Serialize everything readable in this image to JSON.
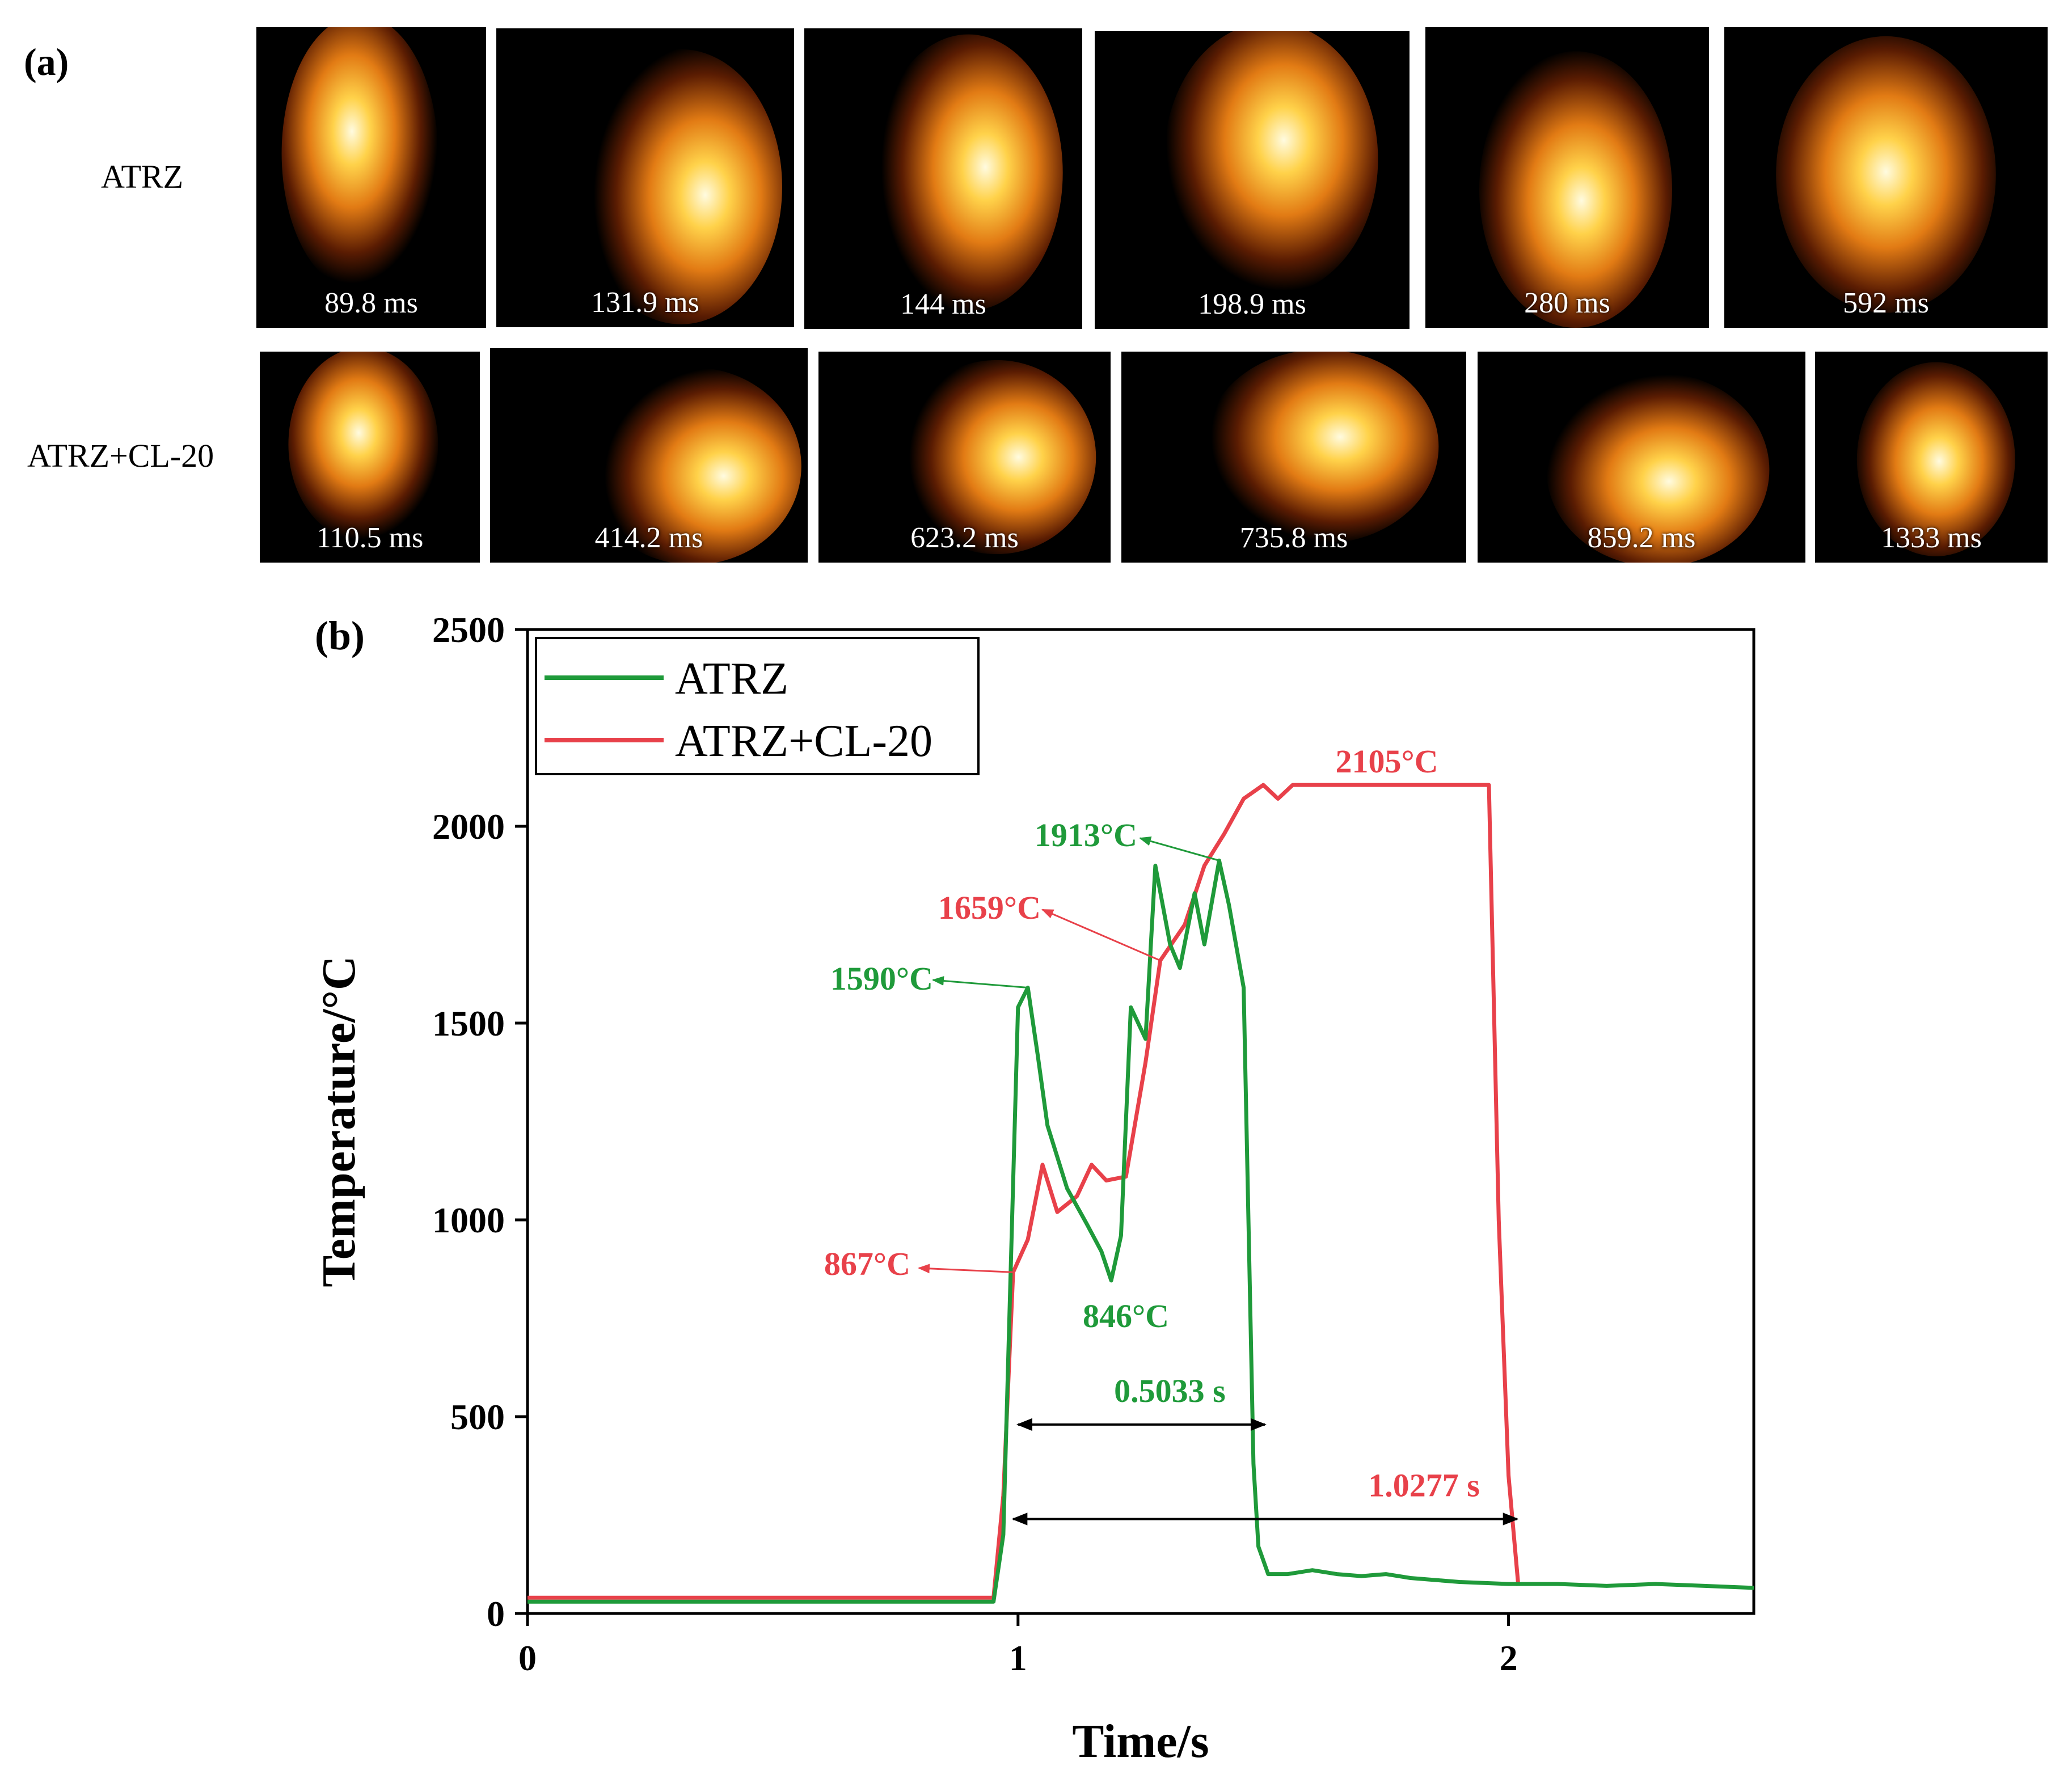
{
  "panel_a": {
    "label": "(a)",
    "rows": [
      {
        "name": "ATRZ",
        "frames": [
          "89.8 ms",
          "131.9 ms",
          "144 ms",
          "198.9 ms",
          "280 ms",
          "592 ms"
        ]
      },
      {
        "name": "ATRZ+CL-20",
        "frames": [
          "110.5 ms",
          "414.2 ms",
          "623.2 ms",
          "735.8 ms",
          "859.2 ms",
          "1333 ms"
        ]
      }
    ]
  },
  "chart_data": {
    "panel_label": "(b)",
    "type": "line",
    "title": "",
    "xlabel": "Time/s",
    "ylabel": "Temperature/°C",
    "xlim": [
      0,
      2.5
    ],
    "ylim": [
      0,
      2500
    ],
    "xticks": [
      0,
      1,
      2
    ],
    "yticks": [
      0,
      500,
      1000,
      1500,
      2000,
      2500
    ],
    "grid": false,
    "legend_position": "top-left",
    "series": [
      {
        "name": "ATRZ",
        "color": "#1f9a3a",
        "x": [
          0,
          0.5,
          0.95,
          0.97,
          1.0,
          1.02,
          1.04,
          1.06,
          1.1,
          1.14,
          1.17,
          1.19,
          1.21,
          1.23,
          1.26,
          1.28,
          1.31,
          1.33,
          1.36,
          1.38,
          1.41,
          1.43,
          1.46,
          1.48,
          1.49,
          1.51,
          1.55,
          1.6,
          1.65,
          1.7,
          1.75,
          1.8,
          1.85,
          1.9,
          2.0,
          2.1,
          2.2,
          2.3,
          2.4,
          2.5
        ],
        "y": [
          30,
          30,
          30,
          200,
          1540,
          1590,
          1420,
          1240,
          1080,
          990,
          920,
          846,
          960,
          1540,
          1460,
          1900,
          1700,
          1640,
          1830,
          1700,
          1913,
          1800,
          1590,
          380,
          170,
          100,
          100,
          110,
          100,
          95,
          100,
          90,
          85,
          80,
          75,
          75,
          70,
          75,
          70,
          65
        ]
      },
      {
        "name": "ATRZ+CL-20",
        "color": "#e8414a",
        "x": [
          0,
          0.5,
          0.95,
          0.97,
          0.99,
          1.02,
          1.05,
          1.08,
          1.12,
          1.15,
          1.18,
          1.22,
          1.26,
          1.29,
          1.34,
          1.38,
          1.42,
          1.46,
          1.5,
          1.53,
          1.56,
          1.6,
          1.7,
          1.8,
          1.9,
          1.96,
          1.98,
          2.0,
          2.02
        ],
        "y": [
          40,
          40,
          40,
          300,
          867,
          950,
          1140,
          1020,
          1060,
          1140,
          1100,
          1110,
          1400,
          1659,
          1750,
          1900,
          1980,
          2070,
          2105,
          2070,
          2105,
          2105,
          2105,
          2105,
          2105,
          2105,
          1000,
          350,
          70
        ]
      }
    ],
    "annotations": [
      {
        "text": "1590°C",
        "color": "#1f9a3a",
        "target": [
          1.02,
          1590
        ]
      },
      {
        "text": "846°C",
        "color": "#1f9a3a",
        "target": [
          1.19,
          846
        ]
      },
      {
        "text": "1913°C",
        "color": "#1f9a3a",
        "target": [
          1.41,
          1913
        ]
      },
      {
        "text": "867°C",
        "color": "#e8414a",
        "target": [
          0.99,
          867
        ]
      },
      {
        "text": "1659°C",
        "color": "#e8414a",
        "target": [
          1.29,
          1659
        ]
      },
      {
        "text": "2105°C",
        "color": "#e8414a",
        "target": [
          1.8,
          2105
        ]
      },
      {
        "text": "0.5033 s",
        "color": "#1f9a3a",
        "span": [
          1.0,
          1.5033
        ],
        "at_y": 480
      },
      {
        "text": "1.0277 s",
        "color": "#e8414a",
        "span": [
          0.99,
          2.0177
        ],
        "at_y": 240
      }
    ]
  }
}
